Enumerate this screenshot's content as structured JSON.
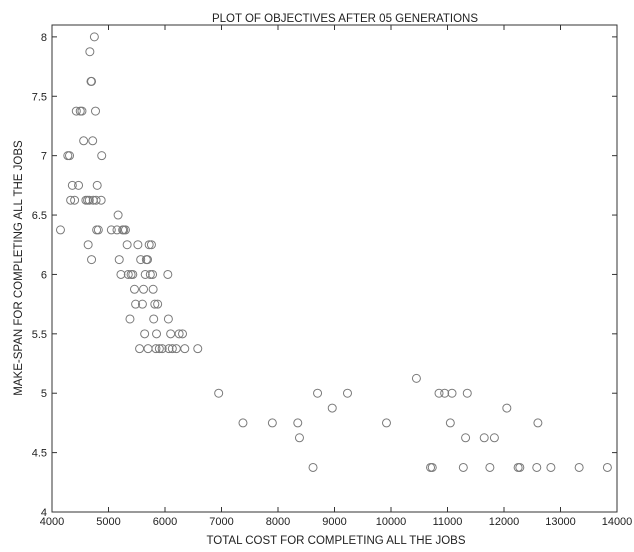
{
  "chart_data": {
    "type": "scatter",
    "title": "PLOT OF OBJECTIVES AFTER 05 GENERATIONS",
    "xlabel": "TOTAL COST FOR COMPLETING ALL THE JOBS",
    "ylabel": "MAKE-SPAN FOR COMPLETING ALL THE JOBS",
    "xlim": [
      4000,
      14000
    ],
    "ylim": [
      4,
      8.1
    ],
    "xticks": [
      "4000",
      "5000",
      "6000",
      "7000",
      "8000",
      "9000",
      "10000",
      "11000",
      "12000",
      "13000",
      "14000"
    ],
    "yticks": [
      "4",
      "4.5",
      "5",
      "5.5",
      "6",
      "6.5",
      "7",
      "7.5",
      "8"
    ],
    "grid": false,
    "marker": "open-circle",
    "marker_color": "#7a7a7a",
    "series": [
      {
        "points": [
          [
            4150,
            6.375
          ],
          [
            4280,
            7.0
          ],
          [
            4310,
            7.0
          ],
          [
            4330,
            6.625
          ],
          [
            4360,
            6.75
          ],
          [
            4400,
            6.625
          ],
          [
            4430,
            7.375
          ],
          [
            4470,
            6.75
          ],
          [
            4500,
            7.375
          ],
          [
            4530,
            7.375
          ],
          [
            4560,
            7.125
          ],
          [
            4600,
            6.625
          ],
          [
            4630,
            6.625
          ],
          [
            4640,
            6.25
          ],
          [
            4660,
            6.625
          ],
          [
            4670,
            7.875
          ],
          [
            4690,
            7.625
          ],
          [
            4700,
            7.625
          ],
          [
            4700,
            6.125
          ],
          [
            4720,
            7.125
          ],
          [
            4730,
            6.625
          ],
          [
            4750,
            8.0
          ],
          [
            4770,
            7.375
          ],
          [
            4780,
            6.625
          ],
          [
            4790,
            6.375
          ],
          [
            4800,
            6.75
          ],
          [
            4820,
            6.375
          ],
          [
            4870,
            6.625
          ],
          [
            4880,
            7.0
          ],
          [
            5050,
            6.375
          ],
          [
            5150,
            6.375
          ],
          [
            5170,
            6.5
          ],
          [
            5190,
            6.125
          ],
          [
            5220,
            6.0
          ],
          [
            5250,
            6.375
          ],
          [
            5270,
            6.375
          ],
          [
            5300,
            6.375
          ],
          [
            5330,
            6.25
          ],
          [
            5350,
            6.0
          ],
          [
            5380,
            5.625
          ],
          [
            5400,
            6.0
          ],
          [
            5430,
            6.0
          ],
          [
            5460,
            5.875
          ],
          [
            5480,
            5.75
          ],
          [
            5520,
            6.25
          ],
          [
            5550,
            5.375
          ],
          [
            5570,
            6.125
          ],
          [
            5600,
            5.75
          ],
          [
            5620,
            5.875
          ],
          [
            5640,
            5.5
          ],
          [
            5650,
            6.0
          ],
          [
            5670,
            6.125
          ],
          [
            5690,
            6.125
          ],
          [
            5700,
            5.375
          ],
          [
            5720,
            6.25
          ],
          [
            5740,
            6.0
          ],
          [
            5760,
            6.25
          ],
          [
            5780,
            6.0
          ],
          [
            5790,
            5.875
          ],
          [
            5800,
            5.625
          ],
          [
            5820,
            5.75
          ],
          [
            5840,
            5.375
          ],
          [
            5850,
            5.5
          ],
          [
            5870,
            5.75
          ],
          [
            5900,
            5.375
          ],
          [
            5950,
            5.375
          ],
          [
            6050,
            6.0
          ],
          [
            6060,
            5.625
          ],
          [
            6070,
            5.375
          ],
          [
            6100,
            5.5
          ],
          [
            6130,
            5.375
          ],
          [
            6200,
            5.375
          ],
          [
            6250,
            5.5
          ],
          [
            6310,
            5.5
          ],
          [
            6350,
            5.375
          ],
          [
            6580,
            5.375
          ],
          [
            6950,
            5.0
          ],
          [
            7380,
            4.75
          ],
          [
            7900,
            4.75
          ],
          [
            8350,
            4.75
          ],
          [
            8380,
            4.625
          ],
          [
            8620,
            4.375
          ],
          [
            8700,
            5.0
          ],
          [
            8960,
            4.875
          ],
          [
            9230,
            5.0
          ],
          [
            9920,
            4.75
          ],
          [
            10450,
            5.125
          ],
          [
            10700,
            4.375
          ],
          [
            10730,
            4.375
          ],
          [
            10850,
            5.0
          ],
          [
            10950,
            5.0
          ],
          [
            11050,
            4.75
          ],
          [
            11080,
            5.0
          ],
          [
            11280,
            4.375
          ],
          [
            11320,
            4.625
          ],
          [
            11350,
            5.0
          ],
          [
            11650,
            4.625
          ],
          [
            11750,
            4.375
          ],
          [
            11830,
            4.625
          ],
          [
            12050,
            4.875
          ],
          [
            12250,
            4.375
          ],
          [
            12280,
            4.375
          ],
          [
            12580,
            4.375
          ],
          [
            12600,
            4.75
          ],
          [
            12830,
            4.375
          ],
          [
            13330,
            4.375
          ],
          [
            13830,
            4.375
          ]
        ]
      }
    ]
  }
}
